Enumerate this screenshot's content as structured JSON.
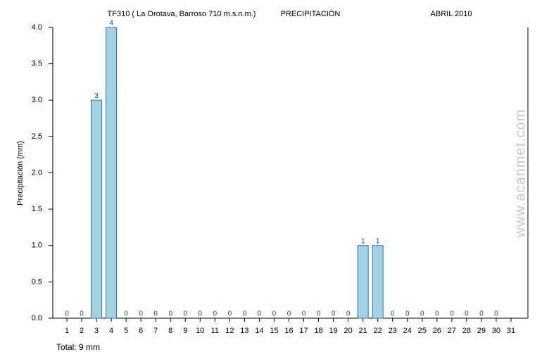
{
  "chart_data": {
    "type": "bar",
    "title": "TF310 ( La Orotava, Barroso 710 m.s.n.m.)",
    "subtitle": "PRECIPITACIÓN",
    "period": "ABRIL 2010",
    "y_label": "Precipitación (mm)",
    "footer": "Total: 9 mm",
    "watermark": "www.acanmet.com",
    "categories": [
      "1",
      "2",
      "3",
      "4",
      "5",
      "6",
      "7",
      "8",
      "9",
      "10",
      "11",
      "12",
      "13",
      "14",
      "15",
      "16",
      "17",
      "18",
      "19",
      "20",
      "21",
      "22",
      "23",
      "24",
      "25",
      "26",
      "27",
      "28",
      "29",
      "30",
      "31"
    ],
    "values": [
      0,
      0,
      3,
      4,
      0,
      0,
      0,
      0,
      0,
      0,
      0,
      0,
      0,
      0,
      0,
      0,
      0,
      0,
      0,
      0,
      1,
      1,
      0,
      0,
      0,
      0,
      0,
      0,
      0,
      0,
      null
    ],
    "color": "#a3d2e2",
    "ylim": [
      0,
      4
    ],
    "yticks": [
      {
        "value": 0,
        "label": "0.0"
      },
      {
        "value": 0.5,
        "label": "0.5"
      },
      {
        "value": 1,
        "label": "1.0"
      },
      {
        "value": 1.5,
        "label": "1.5"
      },
      {
        "value": 2,
        "label": "2.0"
      },
      {
        "value": 2.5,
        "label": "2.5"
      },
      {
        "value": 3,
        "label": "3.0"
      },
      {
        "value": 3.5,
        "label": "3.5"
      },
      {
        "value": 4,
        "label": "4.0"
      }
    ]
  }
}
